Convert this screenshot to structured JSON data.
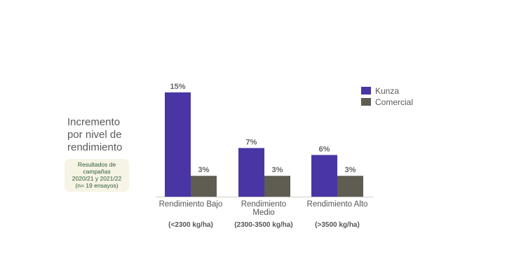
{
  "side_title": [
    "Incremento",
    "por nivel de",
    "rendimiento"
  ],
  "note": [
    "Resultados de",
    "campañas",
    "2020/21 y 2021/22",
    "(n= 19 ensayos)"
  ],
  "chart_data": {
    "type": "bar",
    "categories": [
      {
        "label": [
          "Rendimiento Bajo"
        ],
        "sub": "(<2300 kg/ha)"
      },
      {
        "label": [
          "Rendimiento",
          "Medio"
        ],
        "sub": "(2300-3500 kg/ha)"
      },
      {
        "label": [
          "Rendimiento Alto"
        ],
        "sub": "(>3500 kg/ha)"
      }
    ],
    "series": [
      {
        "name": "Kunza",
        "color": "#4a35a5",
        "values": [
          15,
          7,
          6
        ],
        "labels": [
          "15%",
          "7%",
          "6%"
        ]
      },
      {
        "name": "Comercial",
        "color": "#5f5d52",
        "values": [
          3,
          3,
          3
        ],
        "labels": [
          "3%",
          "3%",
          "3%"
        ]
      }
    ],
    "ylim": [
      0,
      15
    ],
    "grid": false,
    "legend": "top-right"
  }
}
